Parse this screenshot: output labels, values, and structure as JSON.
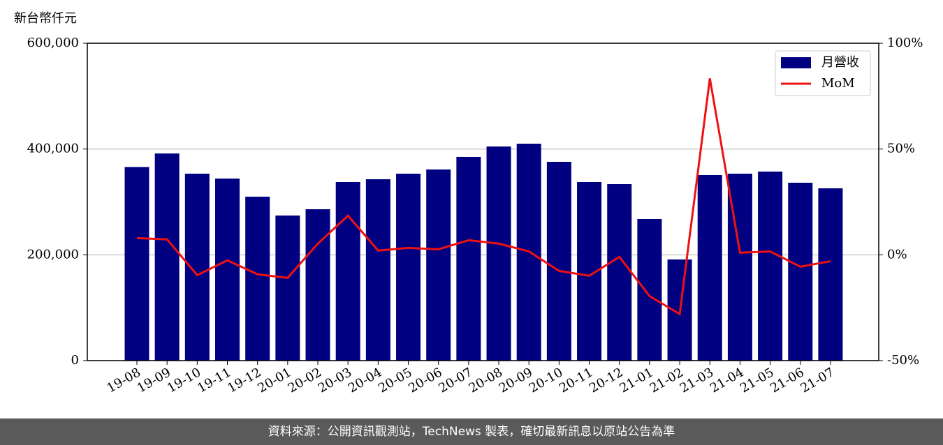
{
  "chart_data": {
    "type": "bar_line",
    "ylabel": "新台幣仟元",
    "categories": [
      "19-08",
      "19-09",
      "19-10",
      "19-11",
      "19-12",
      "20-01",
      "20-02",
      "20-03",
      "20-04",
      "20-05",
      "20-06",
      "20-07",
      "20-08",
      "20-09",
      "20-10",
      "20-11",
      "20-12",
      "21-01",
      "21-02",
      "21-03",
      "21-04",
      "21-05",
      "21-06",
      "21-07"
    ],
    "series": [
      {
        "name": "月營收",
        "type": "bar",
        "color": "#000080",
        "values": [
          366000,
          391600,
          353400,
          344200,
          309900,
          274300,
          286200,
          337600,
          342900,
          353400,
          361300,
          385100,
          404800,
          410100,
          375800,
          337600,
          333600,
          267700,
          191200,
          350800,
          353400,
          357400,
          336300,
          325700
        ]
      },
      {
        "name": "MoM",
        "type": "line",
        "axis": "y2",
        "color": "#ee1111",
        "values": [
          7.9,
          7.3,
          -9.6,
          -2.6,
          -9.2,
          -10.9,
          5.3,
          18.5,
          2.0,
          3.3,
          2.6,
          6.9,
          5.3,
          1.6,
          -7.6,
          -9.9,
          -1.0,
          -19.5,
          -28.0,
          83.4,
          1.0,
          1.6,
          -5.6,
          -3.0
        ]
      }
    ],
    "ylim": [
      0,
      600000
    ],
    "yticks": [
      {
        "value": 0,
        "label": "0"
      },
      {
        "value": 200000,
        "label": "200,000"
      },
      {
        "value": 400000,
        "label": "400,000"
      },
      {
        "value": 600000,
        "label": "600,000"
      }
    ],
    "y2lim": [
      -50,
      100
    ],
    "y2ticks": [
      {
        "value": -50,
        "label": "-50%"
      },
      {
        "value": 0,
        "label": "0%"
      },
      {
        "value": 50,
        "label": "50%"
      },
      {
        "value": 100,
        "label": "100%"
      }
    ],
    "grid": true,
    "legend": "upper right",
    "source": "資料來源：公開資訊觀測站，TechNews 製表，確切最新訊息以原站公告為準"
  }
}
